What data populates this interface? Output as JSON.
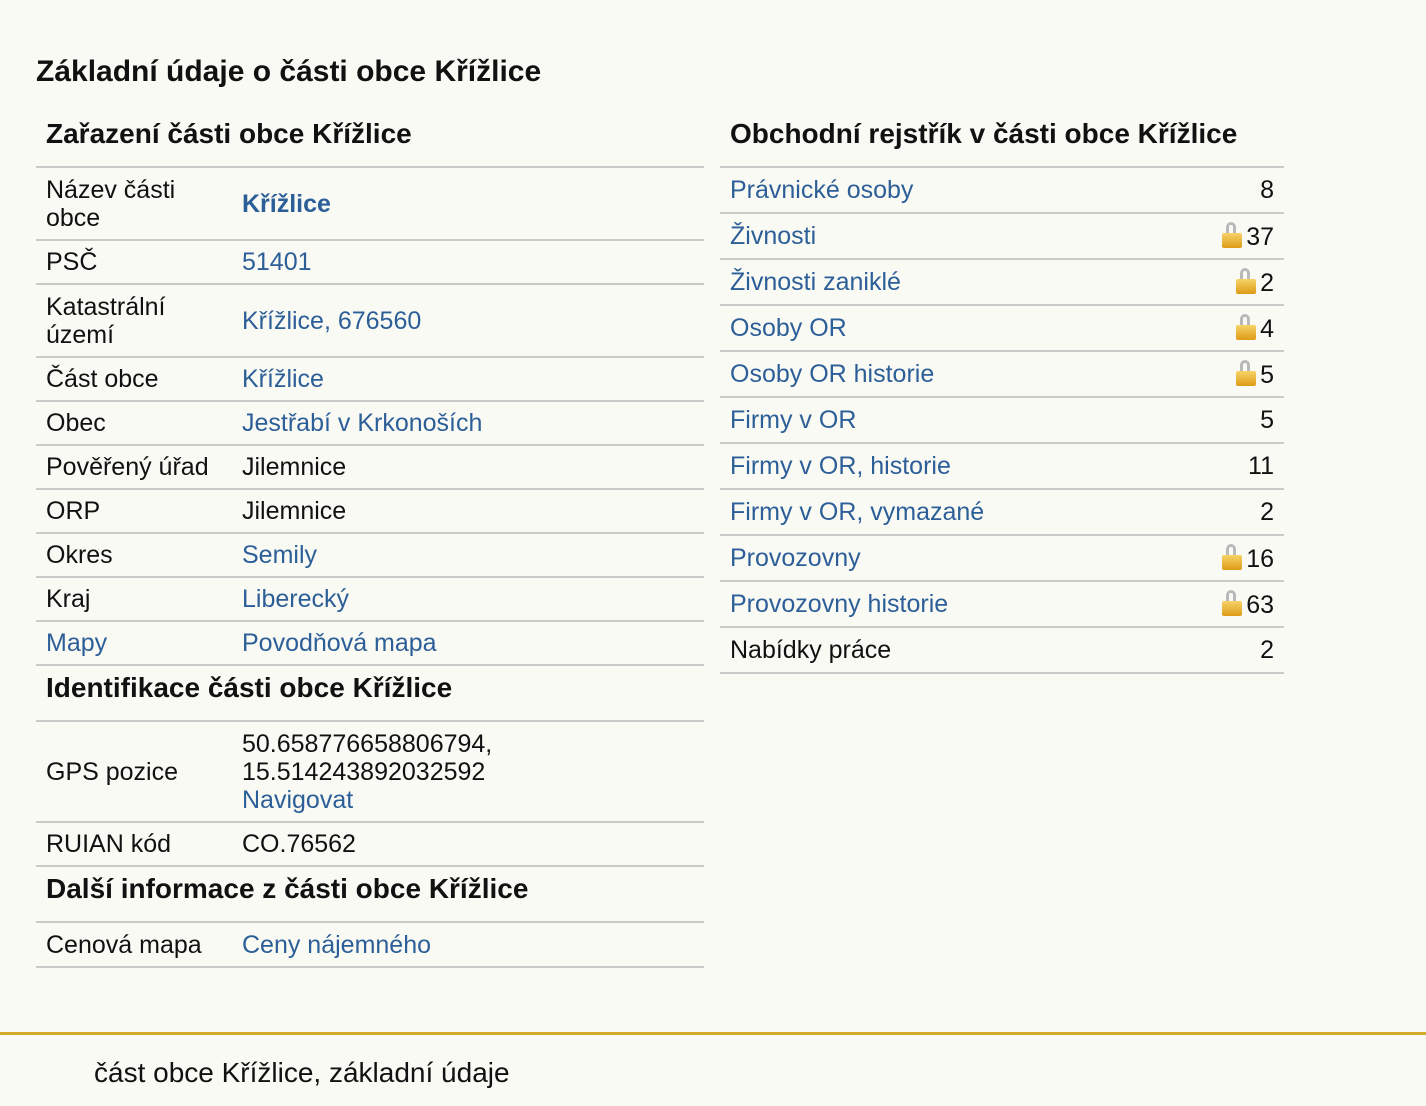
{
  "page_title": "Základní údaje o části obce Křížlice",
  "left": {
    "zarazeni": {
      "heading": "Zařazení části obce Křížlice",
      "rows": [
        {
          "label": "Název části obce",
          "value": "Křížlice"
        },
        {
          "label": "PSČ",
          "value": "51401"
        },
        {
          "label": "Katastrální území",
          "value": "Křížlice, 676560"
        },
        {
          "label": "Část obce",
          "value": "Křížlice"
        },
        {
          "label": "Obec",
          "value": "Jestřabí v Krkonoších"
        },
        {
          "label": "Pověřený úřad",
          "value": "Jilemnice"
        },
        {
          "label": "ORP",
          "value": "Jilemnice"
        },
        {
          "label": "Okres",
          "value": "Semily"
        },
        {
          "label": "Kraj",
          "value": "Liberecký"
        },
        {
          "label": "Mapy",
          "value": "Povodňová mapa"
        }
      ]
    },
    "identifikace": {
      "heading": "Identifikace části obce Křížlice",
      "gps_label": "GPS pozice",
      "gps_lat": "50.658776658806794,",
      "gps_lon": "15.514243892032592",
      "gps_link": "Navigovat",
      "ruian_label": "RUIAN kód",
      "ruian_value": "CO.76562"
    },
    "dalsi": {
      "heading": "Další informace z části obce Křížlice",
      "label": "Cenová mapa",
      "value": "Ceny nájemného"
    }
  },
  "right": {
    "heading": "Obchodní rejstřík v části obce Křížlice",
    "rows": [
      {
        "label": "Právnické osoby",
        "count": "8",
        "locked": false
      },
      {
        "label": "Živnosti",
        "count": "37",
        "locked": true
      },
      {
        "label": "Živnosti zaniklé",
        "count": "2",
        "locked": true
      },
      {
        "label": "Osoby OR",
        "count": "4",
        "locked": true
      },
      {
        "label": "Osoby OR historie",
        "count": "5",
        "locked": true
      },
      {
        "label": "Firmy v OR",
        "count": "5",
        "locked": false
      },
      {
        "label": "Firmy v OR, historie",
        "count": "11",
        "locked": false
      },
      {
        "label": "Firmy v OR, vymazané",
        "count": "2",
        "locked": false
      },
      {
        "label": "Provozovny",
        "count": "16",
        "locked": true
      },
      {
        "label": "Provozovny historie",
        "count": "63",
        "locked": true
      },
      {
        "label": "Nabídky práce",
        "count": "2",
        "locked": false
      }
    ]
  },
  "footer": {
    "text": "část obce Křížlice, základní údaje"
  },
  "colors": {
    "link": "#2c5e97",
    "accent_line": "#d4aa2a",
    "divider": "#c9c9c9",
    "lock": "#e8b437"
  },
  "icons": {
    "lock": "padlock-icon"
  }
}
